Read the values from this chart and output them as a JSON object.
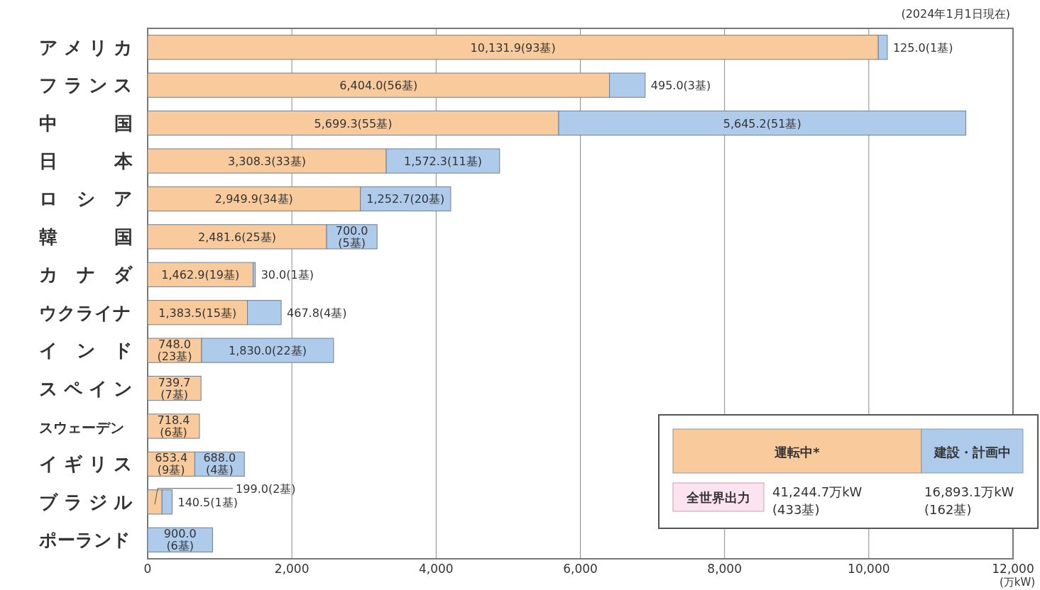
{
  "chart_data": {
    "type": "bar",
    "orientation": "horizontal",
    "stacked": true,
    "categories": [
      "アメリカ",
      "フランス",
      "中国",
      "日本",
      "ロシア",
      "韓国",
      "カナダ",
      "ウクライナ",
      "インド",
      "スペイン",
      "スウェーデン",
      "イギリス",
      "ブラジル",
      "ポーランド"
    ],
    "series": [
      {
        "name": "運転中*",
        "color": "#f9cb9c",
        "values": [
          10131.9,
          6404.0,
          5699.3,
          3308.3,
          2949.9,
          2481.6,
          1462.9,
          1383.5,
          748.0,
          739.7,
          718.4,
          653.4,
          199.0,
          null
        ],
        "value_labels": [
          "10,131.9(93基)",
          "6,404.0(56基)",
          "5,699.3(55基)",
          "3,308.3(33基)",
          "2,949.9(34基)",
          "2,481.6(25基)",
          "1,462.9(19基)",
          "1,383.5(15基)",
          "748.0(23基)",
          "739.7(7基)",
          "718.4(6基)",
          "653.4(9基)",
          "199.0(2基)",
          null
        ]
      },
      {
        "name": "建設・計画中",
        "color": "#aecbeb",
        "values": [
          125.0,
          495.0,
          5645.2,
          1572.3,
          1252.7,
          700.0,
          30.0,
          467.8,
          1830.0,
          null,
          null,
          688.0,
          140.5,
          900.0
        ],
        "value_labels": [
          "125.0(1基)",
          "495.0(3基)",
          "5,645.2(51基)",
          "1,572.3(11基)",
          "1,252.7(20基)",
          "700.0(5基)",
          "30.0(1基)",
          "467.8(4基)",
          "1,830.0(22基)",
          null,
          null,
          "688.0(4基)",
          "140.5(1基)",
          "900.0(6基)"
        ]
      }
    ],
    "xlim": [
      0,
      12000
    ],
    "xticks": [
      0,
      {
        "value": 2000,
        "label": "2,000"
      },
      {
        "value": 4000,
        "label": "4,000"
      },
      {
        "value": 6000,
        "label": "6,000"
      },
      {
        "value": 8000,
        "label": "8,000"
      },
      {
        "value": 10000,
        "label": "10,000"
      },
      {
        "value": 12000,
        "label": "12,000"
      }
    ],
    "xlabel": "(万kW)",
    "grid": "x",
    "legend": "bottom right",
    "annotations": [
      "(2024年1月1日現在)",
      "全世界出力",
      "41,244.7万kW (433基)",
      "16,893.1万kW (162基)"
    ]
  }
}
